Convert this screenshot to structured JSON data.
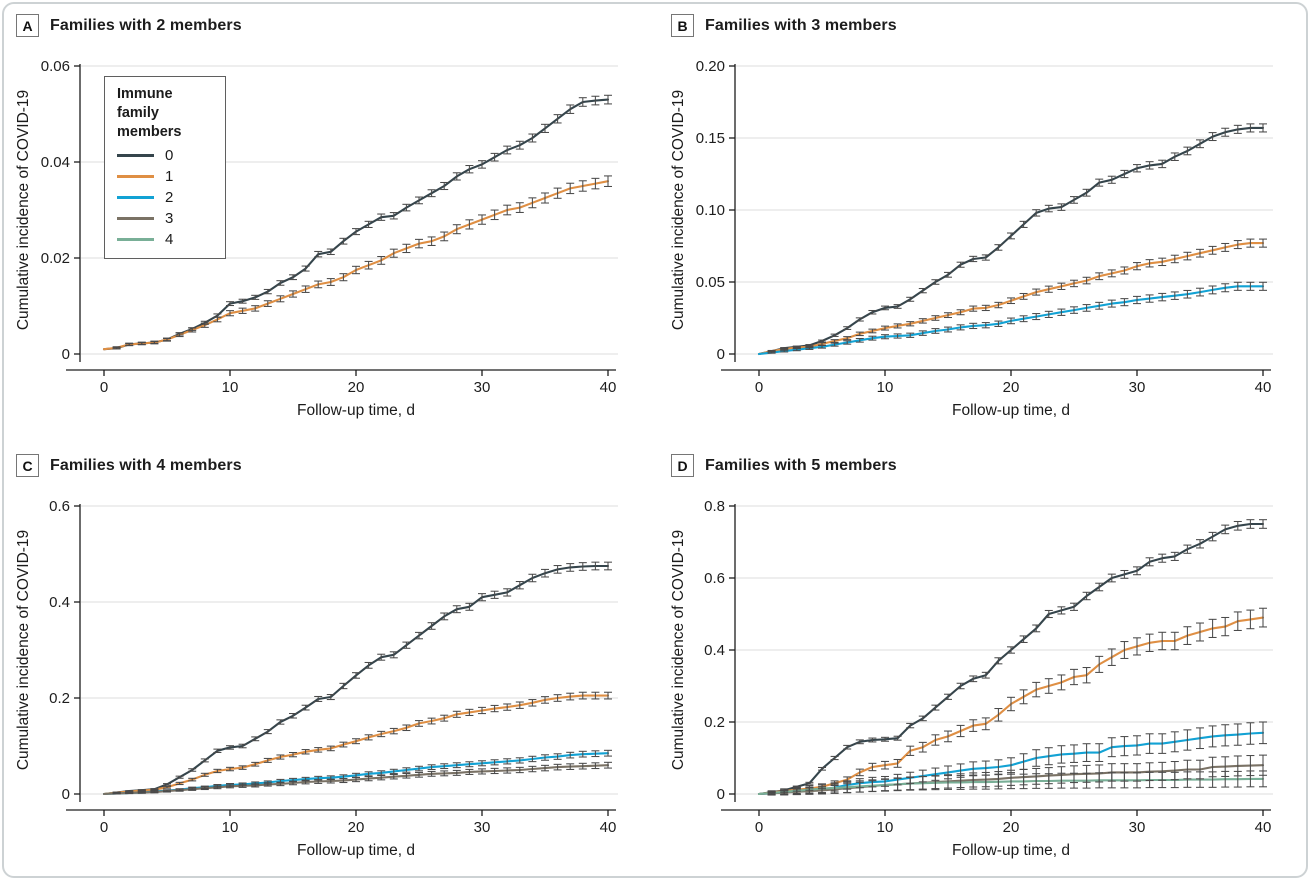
{
  "figure": {
    "xlabel": "Follow-up time, d",
    "ylabel": "Cumulative incidence of COVID-19",
    "legend": {
      "title_lines": [
        "Immune family",
        "members"
      ],
      "items": [
        "0",
        "1",
        "2",
        "3",
        "4"
      ]
    }
  },
  "colors": {
    "series": [
      "#35454c",
      "#df8f44",
      "#12a2d4",
      "#7a7265",
      "#79af97"
    ],
    "errbar": "#4a4a4a",
    "grid": "#e3e3e3",
    "axis": "#1d1d1d",
    "frame_border": "#cdd2d4"
  },
  "chart_data": [
    {
      "type": "line",
      "panel_letter": "A",
      "title": "Families with 2 members",
      "xlabel": "Follow-up time, d",
      "ylabel": "Cumulative incidence of COVID-19",
      "x_unit": "days",
      "x": "integers 0 to 40",
      "xticks": [
        0,
        10,
        20,
        30,
        40
      ],
      "ylim": [
        0,
        0.06
      ],
      "yticks": {
        "values": [
          0,
          0.02,
          0.04,
          0.06
        ],
        "labels": [
          "0",
          "0.02",
          "0.04",
          "0.06"
        ]
      },
      "grid": "horizontal",
      "has_legend": true,
      "series": [
        {
          "name": "0",
          "color_index": 0,
          "err_end": 0.0009,
          "values": [
            0.001,
            0.0012,
            0.002,
            0.0022,
            0.0024,
            0.003,
            0.0042,
            0.0052,
            0.0065,
            0.008,
            0.0105,
            0.011,
            0.0118,
            0.013,
            0.0148,
            0.016,
            0.0178,
            0.0208,
            0.0213,
            0.0235,
            0.0255,
            0.027,
            0.0285,
            0.0288,
            0.0305,
            0.032,
            0.0335,
            0.035,
            0.037,
            0.0385,
            0.0395,
            0.041,
            0.0425,
            0.0435,
            0.045,
            0.047,
            0.049,
            0.051,
            0.0525,
            0.0528,
            0.053
          ]
        },
        {
          "name": "1",
          "color_index": 1,
          "err_end": 0.0011,
          "values": [
            0.001,
            0.0013,
            0.002,
            0.0022,
            0.0024,
            0.003,
            0.004,
            0.005,
            0.006,
            0.0072,
            0.0085,
            0.009,
            0.0095,
            0.0105,
            0.0115,
            0.0125,
            0.0135,
            0.0145,
            0.015,
            0.016,
            0.0175,
            0.0185,
            0.0195,
            0.021,
            0.022,
            0.023,
            0.0235,
            0.0245,
            0.026,
            0.027,
            0.028,
            0.029,
            0.03,
            0.0305,
            0.0315,
            0.0325,
            0.0335,
            0.0345,
            0.035,
            0.0355,
            0.036
          ]
        }
      ]
    },
    {
      "type": "line",
      "panel_letter": "B",
      "title": "Families with 3 members",
      "xlabel": "Follow-up time, d",
      "ylabel": "Cumulative incidence of COVID-19",
      "x_unit": "days",
      "x": "integers 0 to 40",
      "xticks": [
        0,
        10,
        20,
        30,
        40
      ],
      "ylim": [
        0,
        0.2
      ],
      "yticks": {
        "values": [
          0,
          0.05,
          0.1,
          0.15,
          0.2
        ],
        "labels": [
          "0",
          "0.05",
          "0.10",
          "0.15",
          "0.20"
        ]
      },
      "grid": "horizontal",
      "has_legend": false,
      "series": [
        {
          "name": "0",
          "color_index": 0,
          "err_end": 0.0028,
          "values": [
            0,
            0.002,
            0.004,
            0.005,
            0.006,
            0.009,
            0.013,
            0.018,
            0.024,
            0.029,
            0.032,
            0.033,
            0.038,
            0.044,
            0.05,
            0.055,
            0.062,
            0.066,
            0.067,
            0.074,
            0.082,
            0.09,
            0.098,
            0.101,
            0.102,
            0.107,
            0.112,
            0.119,
            0.121,
            0.125,
            0.129,
            0.131,
            0.132,
            0.137,
            0.141,
            0.146,
            0.151,
            0.154,
            0.156,
            0.157,
            0.157
          ]
        },
        {
          "name": "1",
          "color_index": 1,
          "err_end": 0.0028,
          "values": [
            0,
            0.002,
            0.0035,
            0.0045,
            0.005,
            0.007,
            0.009,
            0.011,
            0.014,
            0.016,
            0.018,
            0.0195,
            0.021,
            0.023,
            0.025,
            0.027,
            0.029,
            0.0315,
            0.032,
            0.034,
            0.037,
            0.04,
            0.043,
            0.045,
            0.047,
            0.049,
            0.051,
            0.054,
            0.056,
            0.058,
            0.061,
            0.063,
            0.064,
            0.066,
            0.068,
            0.07,
            0.072,
            0.074,
            0.076,
            0.077,
            0.077
          ]
        },
        {
          "name": "2",
          "color_index": 2,
          "err_end": 0.0028,
          "values": [
            0,
            0.001,
            0.002,
            0.003,
            0.004,
            0.005,
            0.0065,
            0.008,
            0.0095,
            0.011,
            0.012,
            0.0125,
            0.013,
            0.0145,
            0.016,
            0.017,
            0.0185,
            0.0195,
            0.02,
            0.021,
            0.023,
            0.0245,
            0.026,
            0.0275,
            0.029,
            0.0305,
            0.032,
            0.0335,
            0.035,
            0.036,
            0.0375,
            0.0385,
            0.0395,
            0.0405,
            0.0415,
            0.043,
            0.0445,
            0.046,
            0.047,
            0.047,
            0.047
          ]
        }
      ]
    },
    {
      "type": "line",
      "panel_letter": "C",
      "title": "Families with 4 members",
      "xlabel": "Follow-up time, d",
      "ylabel": "Cumulative incidence of COVID-19",
      "x_unit": "days",
      "x": "integers 0 to 40",
      "xticks": [
        0,
        10,
        20,
        30,
        40
      ],
      "ylim": [
        0,
        0.6
      ],
      "yticks": {
        "values": [
          0,
          0.2,
          0.4,
          0.6
        ],
        "labels": [
          "0",
          "0.2",
          "0.4",
          "0.6"
        ]
      },
      "grid": "horizontal",
      "has_legend": false,
      "series": [
        {
          "name": "0",
          "color_index": 0,
          "err_end": 0.008,
          "values": [
            0,
            0.003,
            0.006,
            0.008,
            0.01,
            0.02,
            0.035,
            0.05,
            0.07,
            0.09,
            0.097,
            0.1,
            0.115,
            0.13,
            0.15,
            0.163,
            0.18,
            0.198,
            0.202,
            0.225,
            0.247,
            0.268,
            0.285,
            0.29,
            0.31,
            0.33,
            0.35,
            0.37,
            0.385,
            0.39,
            0.41,
            0.415,
            0.42,
            0.435,
            0.45,
            0.46,
            0.468,
            0.472,
            0.474,
            0.475,
            0.475
          ]
        },
        {
          "name": "1",
          "color_index": 1,
          "err_end": 0.007,
          "values": [
            0,
            0.003,
            0.005,
            0.007,
            0.009,
            0.014,
            0.022,
            0.03,
            0.04,
            0.048,
            0.052,
            0.055,
            0.062,
            0.07,
            0.077,
            0.082,
            0.088,
            0.092,
            0.095,
            0.103,
            0.11,
            0.118,
            0.125,
            0.131,
            0.138,
            0.147,
            0.152,
            0.158,
            0.166,
            0.17,
            0.174,
            0.178,
            0.181,
            0.185,
            0.19,
            0.196,
            0.2,
            0.203,
            0.205,
            0.205,
            0.205
          ]
        },
        {
          "name": "2",
          "color_index": 2,
          "err_end": 0.006,
          "values": [
            0,
            0.001,
            0.002,
            0.003,
            0.005,
            0.007,
            0.009,
            0.012,
            0.014,
            0.017,
            0.019,
            0.02,
            0.022,
            0.024,
            0.027,
            0.029,
            0.031,
            0.033,
            0.034,
            0.036,
            0.039,
            0.042,
            0.044,
            0.047,
            0.05,
            0.053,
            0.056,
            0.058,
            0.06,
            0.062,
            0.064,
            0.066,
            0.068,
            0.07,
            0.073,
            0.076,
            0.078,
            0.081,
            0.083,
            0.084,
            0.085
          ]
        },
        {
          "name": "3",
          "color_index": 3,
          "err_end": 0.006,
          "values": [
            0,
            0.001,
            0.002,
            0.003,
            0.004,
            0.006,
            0.008,
            0.01,
            0.012,
            0.014,
            0.016,
            0.017,
            0.018,
            0.02,
            0.021,
            0.023,
            0.025,
            0.026,
            0.027,
            0.028,
            0.03,
            0.032,
            0.034,
            0.036,
            0.038,
            0.04,
            0.042,
            0.043,
            0.044,
            0.046,
            0.047,
            0.048,
            0.049,
            0.05,
            0.052,
            0.054,
            0.056,
            0.057,
            0.058,
            0.059,
            0.06
          ]
        }
      ]
    },
    {
      "type": "line",
      "panel_letter": "D",
      "title": "Families with 5 members",
      "xlabel": "Follow-up time, d",
      "ylabel": "Cumulative incidence of COVID-19",
      "x_unit": "days",
      "x": "integers 0 to 40",
      "xticks": [
        0,
        10,
        20,
        30,
        40
      ],
      "ylim": [
        0,
        0.8
      ],
      "yticks": {
        "values": [
          0,
          0.2,
          0.4,
          0.6,
          0.8
        ],
        "labels": [
          "0",
          "0.2",
          "0.4",
          "0.6",
          "0.8"
        ]
      },
      "grid": "horizontal",
      "has_legend": false,
      "series": [
        {
          "name": "0",
          "color_index": 0,
          "err_end": 0.012,
          "values": [
            0,
            0.005,
            0.01,
            0.02,
            0.03,
            0.07,
            0.1,
            0.13,
            0.145,
            0.15,
            0.152,
            0.155,
            0.19,
            0.21,
            0.24,
            0.27,
            0.3,
            0.32,
            0.33,
            0.37,
            0.4,
            0.43,
            0.46,
            0.5,
            0.51,
            0.52,
            0.55,
            0.575,
            0.6,
            0.61,
            0.62,
            0.645,
            0.655,
            0.66,
            0.68,
            0.695,
            0.715,
            0.735,
            0.745,
            0.75,
            0.75
          ]
        },
        {
          "name": "1",
          "color_index": 1,
          "err_end": 0.026,
          "values": [
            0,
            0.004,
            0.008,
            0.012,
            0.015,
            0.02,
            0.03,
            0.04,
            0.06,
            0.075,
            0.08,
            0.085,
            0.12,
            0.13,
            0.15,
            0.16,
            0.175,
            0.19,
            0.195,
            0.22,
            0.25,
            0.27,
            0.29,
            0.3,
            0.31,
            0.325,
            0.33,
            0.36,
            0.38,
            0.4,
            0.41,
            0.42,
            0.425,
            0.425,
            0.44,
            0.45,
            0.46,
            0.465,
            0.48,
            0.485,
            0.49
          ]
        },
        {
          "name": "2",
          "color_index": 2,
          "err_end": 0.03,
          "values": [
            0,
            0.002,
            0.005,
            0.008,
            0.01,
            0.012,
            0.018,
            0.025,
            0.03,
            0.033,
            0.035,
            0.04,
            0.045,
            0.05,
            0.055,
            0.06,
            0.065,
            0.07,
            0.072,
            0.075,
            0.08,
            0.09,
            0.1,
            0.105,
            0.11,
            0.112,
            0.115,
            0.115,
            0.13,
            0.133,
            0.135,
            0.14,
            0.14,
            0.145,
            0.15,
            0.155,
            0.16,
            0.163,
            0.165,
            0.168,
            0.17
          ]
        },
        {
          "name": "3",
          "color_index": 3,
          "err_end": 0.028,
          "values": [
            0,
            0.002,
            0.004,
            0.006,
            0.008,
            0.01,
            0.013,
            0.016,
            0.019,
            0.022,
            0.025,
            0.027,
            0.029,
            0.031,
            0.033,
            0.035,
            0.037,
            0.039,
            0.04,
            0.042,
            0.045,
            0.047,
            0.049,
            0.051,
            0.053,
            0.055,
            0.056,
            0.057,
            0.06,
            0.06,
            0.06,
            0.062,
            0.063,
            0.065,
            0.068,
            0.068,
            0.075,
            0.076,
            0.078,
            0.079,
            0.08
          ]
        },
        {
          "name": "4",
          "color_index": 4,
          "err_end": 0.022,
          "values": [
            0,
            0.003,
            0.006,
            0.009,
            0.012,
            0.015,
            0.017,
            0.019,
            0.021,
            0.023,
            0.025,
            0.027,
            0.029,
            0.03,
            0.031,
            0.032,
            0.032,
            0.033,
            0.033,
            0.034,
            0.035,
            0.035,
            0.036,
            0.036,
            0.037,
            0.037,
            0.037,
            0.038,
            0.038,
            0.038,
            0.038,
            0.039,
            0.039,
            0.039,
            0.04,
            0.04,
            0.04,
            0.041,
            0.041,
            0.042,
            0.042
          ]
        }
      ]
    }
  ]
}
